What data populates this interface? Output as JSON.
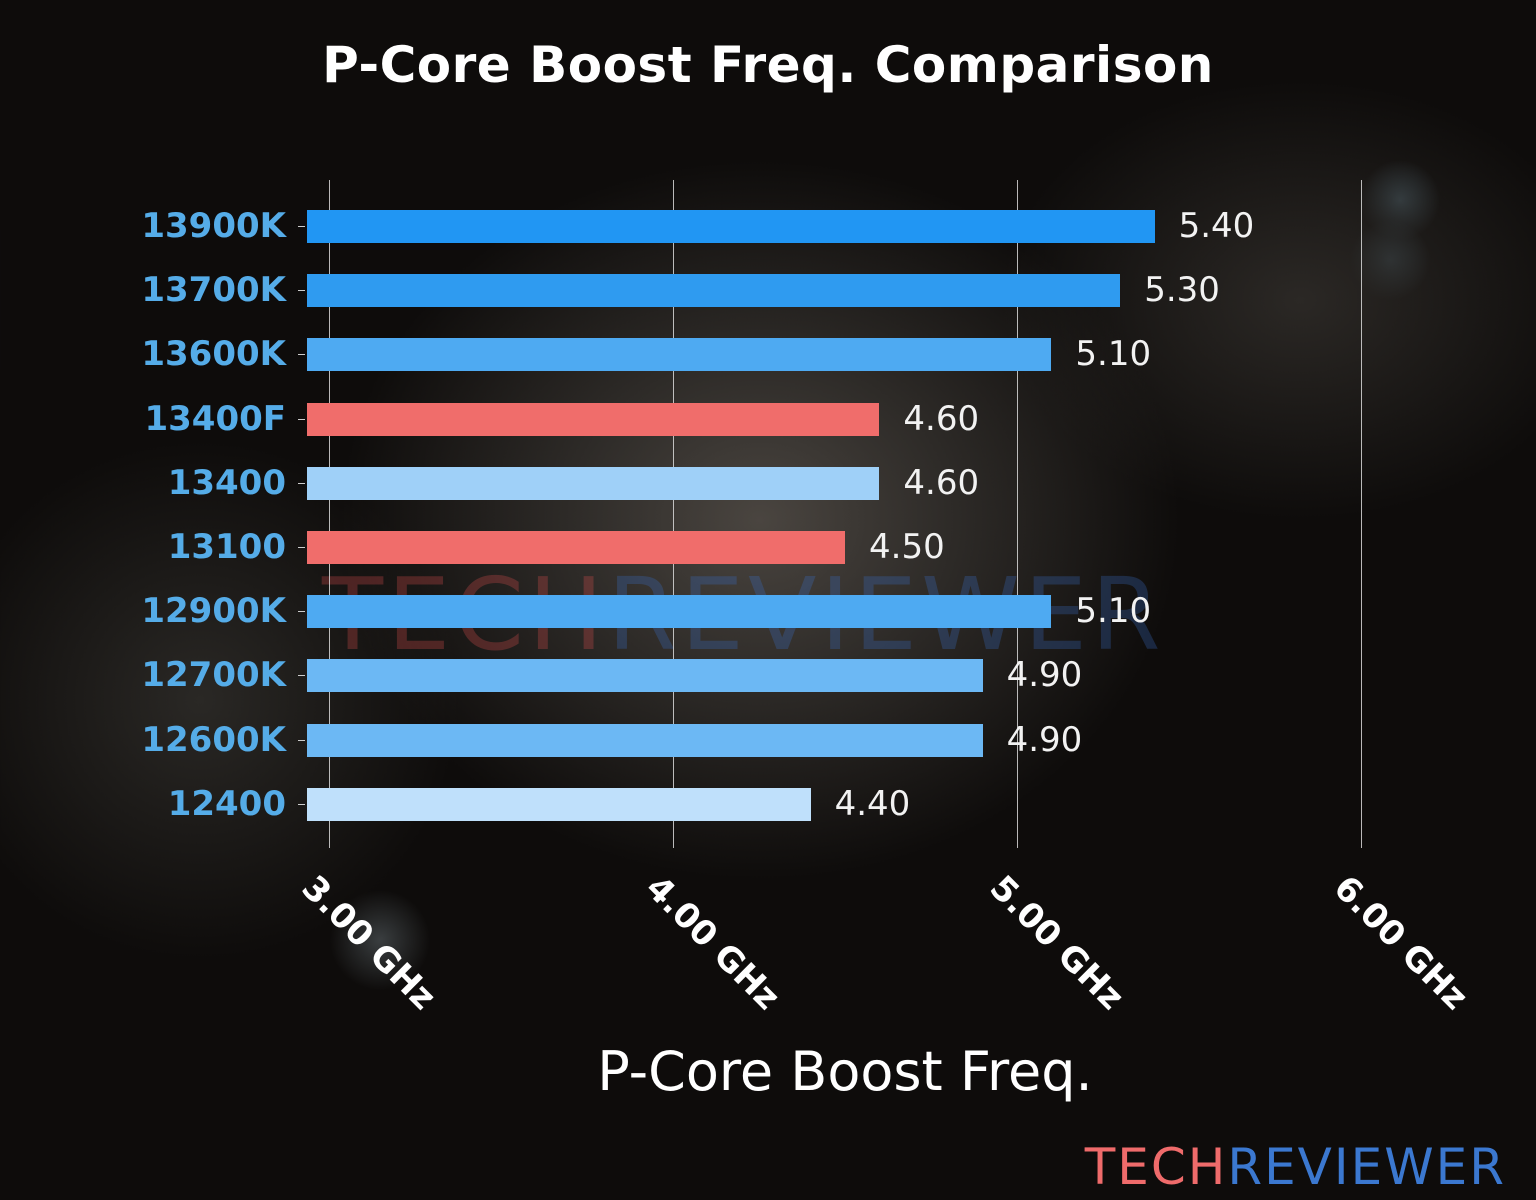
{
  "chart_data": {
    "type": "bar",
    "orientation": "horizontal",
    "title": "P-Core Boost Freq. Comparison",
    "xlabel": "P-Core Boost Freq.",
    "ylabel": "",
    "xlim": [
      2.94,
      6.0
    ],
    "xticks": [
      "3.00 GHz",
      "4.00 GHz",
      "5.00 GHz",
      "6.00 GHz"
    ],
    "grid": "vertical",
    "categories": [
      "13900K",
      "13700K",
      "13600K",
      "13400F",
      "13400",
      "13100",
      "12900K",
      "12700K",
      "12600K",
      "12400"
    ],
    "values": [
      5.4,
      5.3,
      5.1,
      4.6,
      4.6,
      4.5,
      5.1,
      4.9,
      4.9,
      4.4
    ],
    "value_labels": [
      "5.40",
      "5.30",
      "5.10",
      "4.60",
      "4.60",
      "4.50",
      "5.10",
      "4.90",
      "4.90",
      "4.40"
    ],
    "bar_colors": [
      "#2196f3",
      "#2f9bf0",
      "#4eaaf2",
      "#f06d6b",
      "#9fd0f8",
      "#f06d6b",
      "#4eaaf2",
      "#6cb8f4",
      "#6cb8f4",
      "#bfe0fb"
    ],
    "legend": null
  },
  "watermark": {
    "part1": "TECH",
    "part2": "REVIEWER"
  },
  "logo": {
    "part1": "TECH",
    "part2": "REVIEWER"
  }
}
